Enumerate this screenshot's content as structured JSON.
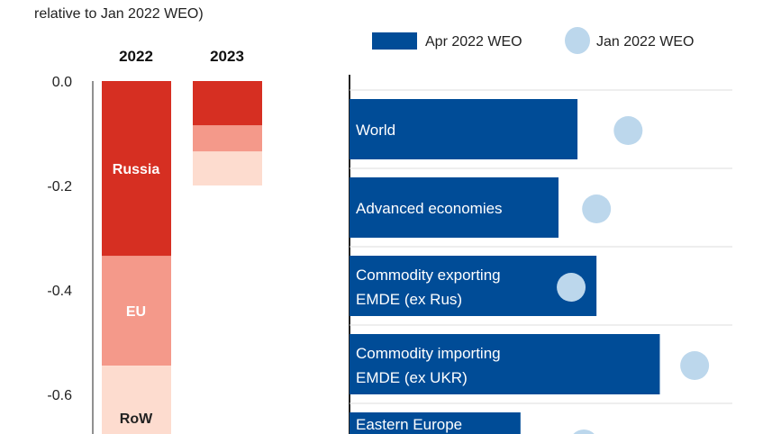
{
  "title_line2": "relative to Jan 2022 WEO)",
  "chart_data": [
    {
      "type": "bar",
      "stacked": true,
      "categories": [
        "2022",
        "2023"
      ],
      "series": [
        {
          "name": "Russia",
          "values": [
            -0.335,
            -0.085
          ],
          "color": "#d62f22"
        },
        {
          "name": "EU",
          "values": [
            -0.21,
            -0.05
          ],
          "color": "#f4998a"
        },
        {
          "name": "RoW",
          "values": [
            -0.2,
            -0.065
          ],
          "color": "#fddccf"
        }
      ],
      "yticks": [
        "0.0",
        "-0.2",
        "-0.4",
        "-0.6"
      ],
      "ylim": [
        -0.68,
        0.0
      ],
      "grid": false
    },
    {
      "type": "bar",
      "orientation": "horizontal",
      "categories": [
        "World",
        "Advanced economies",
        "Commodity exporting EMDE (ex Rus)",
        "Commodity importing EMDE (ex UKR)",
        "Eastern Europe"
      ],
      "category_lines": [
        [
          "World"
        ],
        [
          "Advanced economies"
        ],
        [
          "Commodity exporting",
          "EMDE (ex Rus)"
        ],
        [
          "Commodity importing",
          "EMDE (ex UKR)"
        ],
        [
          "Eastern Europe"
        ]
      ],
      "series": [
        {
          "name": "Apr 2022 WEO",
          "marker": "bar",
          "values": [
            3.6,
            3.3,
            3.9,
            4.9,
            2.7
          ],
          "color": "#004c97"
        },
        {
          "name": "Jan 2022 WEO",
          "marker": "circle",
          "values": [
            4.4,
            3.9,
            3.5,
            5.45,
            3.7
          ],
          "color": "#bcd7ec"
        }
      ],
      "legend": "top"
    }
  ]
}
